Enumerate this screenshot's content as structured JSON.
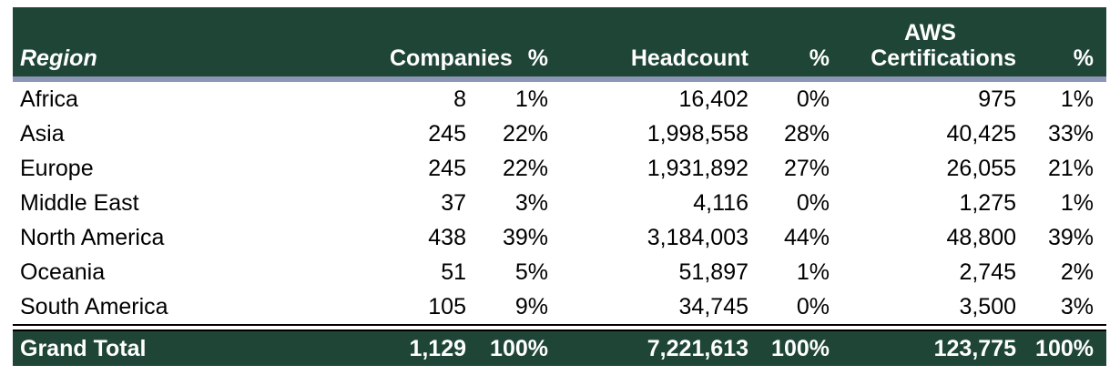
{
  "colors": {
    "header_bg": "#1e4535",
    "separator": "#8a96b4"
  },
  "headers": {
    "region": "Region",
    "companies": "Companies",
    "pct1": "%",
    "headcount": "Headcount",
    "pct2": "%",
    "aws_line1": "AWS",
    "aws_line2": "Certifications",
    "pct3": "%"
  },
  "rows": [
    {
      "region": "Africa",
      "companies": "8",
      "pct1": "1%",
      "headcount": "16,402",
      "pct2": "0%",
      "aws": "975",
      "pct3": "1%"
    },
    {
      "region": "Asia",
      "companies": "245",
      "pct1": "22%",
      "headcount": "1,998,558",
      "pct2": "28%",
      "aws": "40,425",
      "pct3": "33%"
    },
    {
      "region": "Europe",
      "companies": "245",
      "pct1": "22%",
      "headcount": "1,931,892",
      "pct2": "27%",
      "aws": "26,055",
      "pct3": "21%"
    },
    {
      "region": "Middle East",
      "companies": "37",
      "pct1": "3%",
      "headcount": "4,116",
      "pct2": "0%",
      "aws": "1,275",
      "pct3": "1%"
    },
    {
      "region": "North America",
      "companies": "438",
      "pct1": "39%",
      "headcount": "3,184,003",
      "pct2": "44%",
      "aws": "48,800",
      "pct3": "39%"
    },
    {
      "region": "Oceania",
      "companies": "51",
      "pct1": "5%",
      "headcount": "51,897",
      "pct2": "1%",
      "aws": "2,745",
      "pct3": "2%"
    },
    {
      "region": "South America",
      "companies": "105",
      "pct1": "9%",
      "headcount": "34,745",
      "pct2": "0%",
      "aws": "3,500",
      "pct3": "3%"
    }
  ],
  "total": {
    "region": "Grand Total",
    "companies": "1,129",
    "pct1": "100%",
    "headcount": "7,221,613",
    "pct2": "100%",
    "aws": "123,775",
    "pct3": "100%"
  }
}
